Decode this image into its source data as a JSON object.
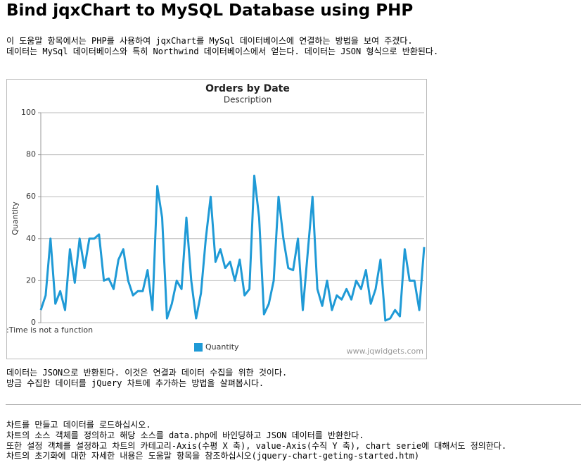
{
  "title": "Bind jqxChart to MySQL Database using PHP",
  "intro": [
    "이 도움말 항목에서는 PHP를 사용하여 jqxChart를 MySql 데이터베이스에 연결하는 방법을 보여 주겠다.",
    "데이터는 MySql 데이터베이스와 특히 Northwind 데이터베이스에서 얻는다. 데이터는 JSON 형식으로 반환된다."
  ],
  "chart_data": {
    "type": "line",
    "title": "Orders by Date",
    "subtitle": "Description",
    "y_label": "Quantity",
    "annotation": ":Time is not a function",
    "credit": "www.jqwidgets.com",
    "series": [
      {
        "name": "Quantity",
        "color": "#1f9ad6",
        "values": [
          6,
          13,
          40,
          9,
          15,
          6,
          35,
          19,
          40,
          26,
          40,
          40,
          42,
          20,
          21,
          16,
          30,
          35,
          20,
          13,
          15,
          15,
          25,
          6,
          65,
          50,
          2,
          9,
          20,
          16,
          50,
          20,
          2,
          14,
          40,
          60,
          29,
          35,
          26,
          29,
          20,
          30,
          13,
          16,
          70,
          50,
          4,
          9,
          20,
          60,
          40,
          26,
          25,
          40,
          6,
          33,
          60,
          16,
          8,
          20,
          6,
          13,
          11,
          16,
          11,
          20,
          16,
          25,
          9,
          16,
          30,
          1,
          2,
          6,
          3,
          35,
          20,
          20,
          6,
          36
        ]
      }
    ],
    "ylim": [
      0,
      100
    ],
    "yticks": [
      0,
      20,
      40,
      60,
      80,
      100
    ],
    "grid": true
  },
  "middle": [
    "데이터는 JSON으로 반환된다. 이것은 연결과 데이터 수집을 위한 것이다.",
    "방금 수집한 데이터를 jQuery 차트에 추가하는 방법을 살펴봅시다."
  ],
  "outro": [
    "차트를 만들고 데이터를 로드하십시오.",
    "차트의 소스 객체를 정의하고 해당 소스를 data.php에 바인딩하고 JSON 데이터를 반환한다.",
    "또한 설정 객체를 설정하고 차트의 카테고리-Axis(수평 X 축), value-Axis(수직 Y 축), chart serie에 대해서도 정의한다.",
    "차트의 초기화에 대한 자세한 내용은 도움말 항목을 참조하십시오(jquery-chart-geting-started.htm)"
  ]
}
